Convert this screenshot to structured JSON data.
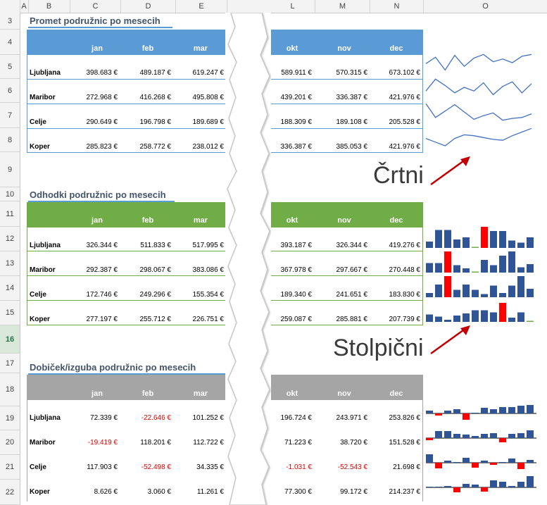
{
  "columns": [
    "A",
    "B",
    "C",
    "D",
    "E",
    "L",
    "M",
    "N",
    "O"
  ],
  "rows": [
    "3",
    "4",
    "5",
    "6",
    "7",
    "8",
    "9",
    "10",
    "11",
    "12",
    "13",
    "14",
    "15",
    "16",
    "17",
    "18",
    "19",
    "20",
    "21",
    "22"
  ],
  "months": [
    "jan",
    "feb",
    "mar",
    "okt",
    "nov",
    "dec"
  ],
  "colors": {
    "blue": "#5b9bd5",
    "green": "#70ad47",
    "gray": "#a5a5a5",
    "bar": "#2f5597",
    "bar_hi": "#ff0000",
    "neg": "#e00000"
  },
  "sections": [
    {
      "title": "Promet podružnic po mesecih",
      "rows": [
        {
          "label": "Ljubljana",
          "values": [
            "398.683 €",
            "489.187 €",
            "619.247 €",
            "589.911 €",
            "570.315 €",
            "673.102 €"
          ]
        },
        {
          "label": "Maribor",
          "values": [
            "272.968 €",
            "416.268 €",
            "495.808 €",
            "439.201 €",
            "336.387 €",
            "421.976 €"
          ]
        },
        {
          "label": "Celje",
          "values": [
            "290.649 €",
            "196.798 €",
            "189.689 €",
            "188.309 €",
            "189.108 €",
            "205.528 €"
          ]
        },
        {
          "label": "Koper",
          "values": [
            "285.823 €",
            "258.772 €",
            "238.012 €",
            "336.387 €",
            "385.053 €",
            "421.976 €"
          ]
        }
      ]
    },
    {
      "title": "Odhodki podružnic po mesecih",
      "rows": [
        {
          "label": "Ljubljana",
          "values": [
            "326.344 €",
            "511.833 €",
            "517.995 €",
            "393.187 €",
            "326.344 €",
            "419.276 €"
          ]
        },
        {
          "label": "Maribor",
          "values": [
            "292.387 €",
            "298.067 €",
            "383.086 €",
            "367.978 €",
            "297.667 €",
            "270.448 €"
          ]
        },
        {
          "label": "Celje",
          "values": [
            "172.746 €",
            "249.296 €",
            "155.354 €",
            "189.340 €",
            "241.651 €",
            "183.830 €"
          ]
        },
        {
          "label": "Koper",
          "values": [
            "277.197 €",
            "255.712 €",
            "226.751 €",
            "259.087 €",
            "285.881 €",
            "207.739 €"
          ]
        }
      ]
    },
    {
      "title": "Dobiček/izguba podružnic po mesecih",
      "rows": [
        {
          "label": "Ljubljana",
          "values": [
            "72.339 €",
            "-22.646 €",
            "101.252 €",
            "196.724 €",
            "243.971 €",
            "253.826 €"
          ]
        },
        {
          "label": "Maribor",
          "values": [
            "-19.419 €",
            "118.201 €",
            "112.722 €",
            "71.223 €",
            "38.720 €",
            "151.528 €"
          ]
        },
        {
          "label": "Celje",
          "values": [
            "117.903 €",
            "-52.498 €",
            "34.335 €",
            "-1.031 €",
            "-52.543 €",
            "21.698 €"
          ]
        },
        {
          "label": "Koper",
          "values": [
            "8.626 €",
            "3.060 €",
            "11.261 €",
            "77.300 €",
            "99.172 €",
            "214.237 €"
          ]
        }
      ]
    }
  ],
  "callouts": {
    "line": "Črtni",
    "column": "Stolpični"
  },
  "chart_data": [
    {
      "type": "line",
      "series": [
        {
          "values": [
            0.45,
            0.8,
            0.1,
            0.9,
            0.3,
            0.75,
            0.95,
            0.55,
            0.7,
            0.5,
            0.85,
            0.95
          ]
        },
        {
          "values": [
            0.3,
            0.95,
            0.6,
            0.2,
            0.5,
            0.3,
            0.75,
            0.1,
            0.55,
            0.8,
            0.2,
            0.7
          ]
        },
        {
          "values": [
            0.95,
            0.2,
            0.55,
            0.9,
            0.5,
            0.1,
            0.3,
            0.45,
            0.05,
            0.15,
            0.2,
            0.4
          ]
        },
        {
          "values": [
            0.4,
            0.2,
            0.0,
            0.4,
            0.6,
            0.55,
            0.45,
            0.35,
            0.3,
            0.55,
            0.75,
            0.95
          ]
        }
      ]
    },
    {
      "type": "bar",
      "series": [
        {
          "values": [
            0.3,
            0.85,
            0.85,
            0.4,
            0.5,
            0.05,
            1.0,
            0.8,
            0.8,
            0.35,
            0.25,
            0.5
          ],
          "highlight": 6
        },
        {
          "values": [
            0.45,
            0.45,
            1.0,
            0.35,
            0.2,
            0.05,
            0.6,
            0.35,
            0.8,
            1.0,
            0.25,
            0.4
          ],
          "highlight": 2
        },
        {
          "values": [
            0.2,
            0.6,
            1.0,
            0.35,
            0.6,
            0.35,
            0.15,
            0.55,
            0.2,
            0.55,
            1.0,
            0.4
          ],
          "highlight": 2
        },
        {
          "values": [
            0.35,
            0.25,
            0.1,
            0.3,
            0.4,
            0.55,
            0.55,
            0.45,
            0.9,
            0.2,
            0.45,
            0.05
          ],
          "highlight": 8
        }
      ]
    },
    {
      "type": "bar",
      "series": [
        {
          "values": [
            0.2,
            -0.15,
            0.2,
            0.3,
            -0.45,
            0.05,
            0.4,
            0.3,
            0.45,
            0.45,
            0.55,
            0.6
          ]
        },
        {
          "values": [
            -0.15,
            0.5,
            0.5,
            0.3,
            0.25,
            0.15,
            0.3,
            0.35,
            -0.3,
            0.3,
            0.35,
            0.55
          ]
        },
        {
          "values": [
            0.6,
            -0.4,
            0.15,
            0.05,
            0.35,
            -0.35,
            0.15,
            -0.15,
            0.0,
            0.3,
            -0.45,
            0.2
          ]
        },
        {
          "values": [
            0.05,
            0.05,
            0.1,
            -0.35,
            0.25,
            0.2,
            -0.3,
            0.5,
            0.4,
            0.1,
            0.4,
            0.8
          ]
        }
      ]
    }
  ]
}
